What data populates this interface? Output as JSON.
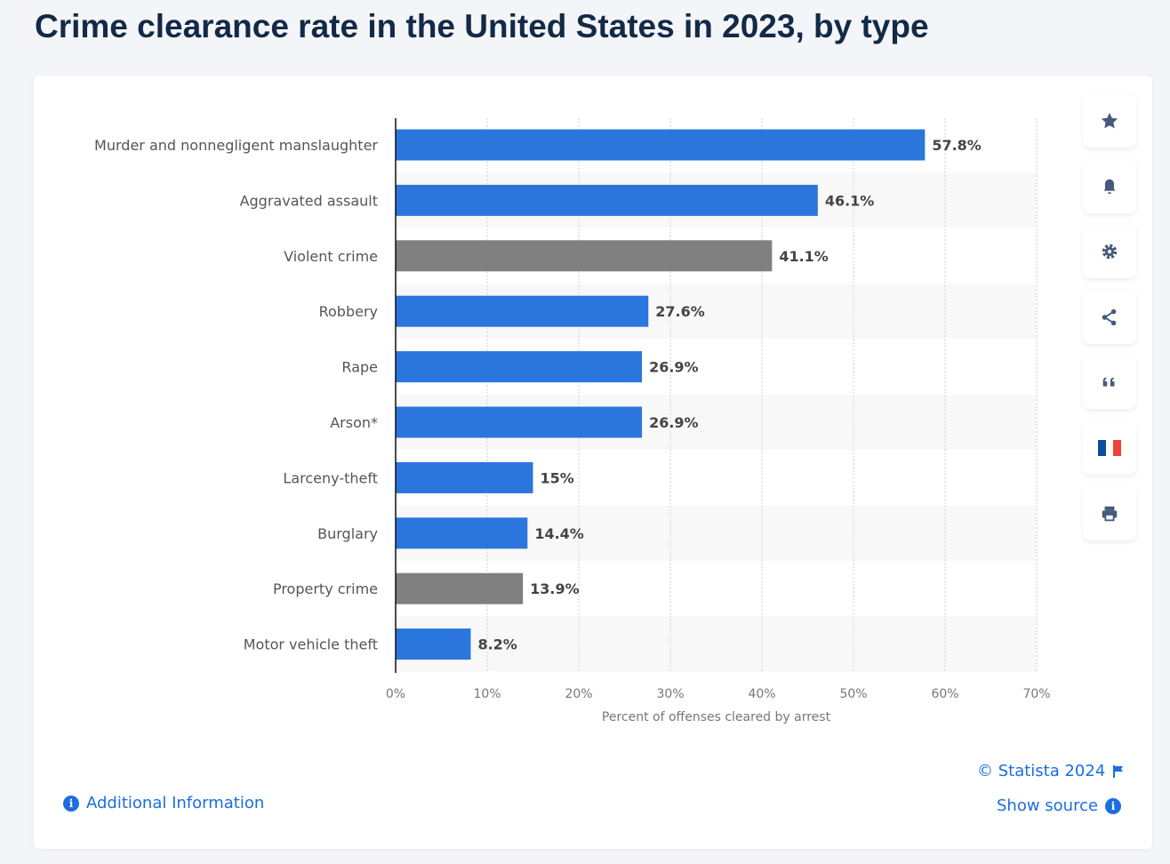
{
  "title": "Crime clearance rate in the United States in 2023, by type",
  "chart_data": {
    "type": "bar",
    "orientation": "horizontal",
    "categories": [
      "Murder and nonnegligent manslaughter",
      "Aggravated assault",
      "Violent crime",
      "Robbery",
      "Rape",
      "Arson*",
      "Larceny-theft",
      "Burglary",
      "Property crime",
      "Motor vehicle theft"
    ],
    "values": [
      57.8,
      46.1,
      41.1,
      27.6,
      26.9,
      26.9,
      15,
      14.4,
      13.9,
      8.2
    ],
    "value_labels": [
      "57.8%",
      "46.1%",
      "41.1%",
      "27.6%",
      "26.9%",
      "26.9%",
      "15%",
      "14.4%",
      "13.9%",
      "8.2%"
    ],
    "bar_colors": [
      "#2a76dd",
      "#2a76dd",
      "#808080",
      "#2a76dd",
      "#2a76dd",
      "#2a76dd",
      "#2a76dd",
      "#2a76dd",
      "#808080",
      "#2a76dd"
    ],
    "xlabel": "Percent of offenses cleared by arrest",
    "ylabel": "",
    "xlim": [
      0,
      70
    ],
    "xticks": [
      0,
      10,
      20,
      30,
      40,
      50,
      60,
      70
    ],
    "xtick_labels": [
      "0%",
      "10%",
      "20%",
      "30%",
      "40%",
      "50%",
      "60%",
      "70%"
    ],
    "grid": true
  },
  "footer": {
    "copyright": "© Statista 2024",
    "show_source": "Show source",
    "additional_info": "Additional Information"
  },
  "sidebar": [
    "star-icon",
    "bell-icon",
    "gear-icon",
    "share-icon",
    "quote-icon",
    "french-flag-icon",
    "print-icon"
  ]
}
